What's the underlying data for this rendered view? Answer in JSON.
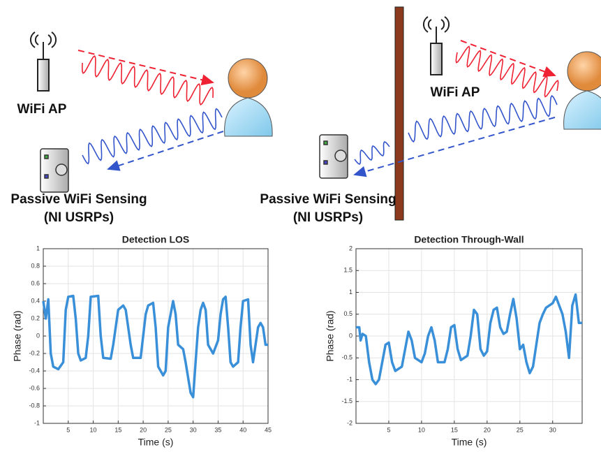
{
  "diagram": {
    "panels": [
      {
        "ap_label": "WiFi AP",
        "sensor_label": "Passive WiFi Sensing",
        "sensor_sublabel": "(NI USRPs)"
      },
      {
        "ap_label": "WiFi AP",
        "sensor_label": "Passive WiFi Sensing",
        "sensor_sublabel": "(NI USRPs)"
      }
    ]
  },
  "chart_data": [
    {
      "type": "line",
      "title": "Detection LOS",
      "x_label": "Time (s)",
      "y_label": "Phase (rad)",
      "xlim": [
        0,
        45
      ],
      "xticks": [
        5,
        10,
        15,
        20,
        25,
        30,
        35,
        40,
        45
      ],
      "ylim": [
        -1,
        1
      ],
      "yticks": [
        -1,
        -0.8,
        -0.6,
        -0.4,
        -0.2,
        0,
        0.2,
        0.4,
        0.6,
        0.8,
        1
      ],
      "grid": true,
      "x": [
        0,
        0.5,
        1,
        1.5,
        2,
        3,
        4,
        4.5,
        5,
        6,
        6.5,
        7,
        7.5,
        8.5,
        9,
        9.5,
        11,
        11.5,
        12,
        13.5,
        14,
        15,
        16,
        16.5,
        17.5,
        18,
        19.5,
        20,
        20.5,
        21,
        22,
        22.5,
        23,
        24,
        24.5,
        25,
        26,
        26.5,
        27,
        28,
        28.5,
        29.5,
        30,
        30.5,
        31,
        31.5,
        32,
        32.5,
        33,
        34,
        35,
        35.5,
        36,
        36.5,
        37,
        37.5,
        38,
        39,
        39.5,
        40,
        41,
        41.5,
        42,
        43,
        43.5,
        44,
        44.5,
        45
      ],
      "series": [
        {
          "color": "#3a8fd9",
          "values": [
            0.4,
            0.2,
            0.42,
            -0.2,
            -0.35,
            -0.38,
            -0.3,
            0.3,
            0.45,
            0.46,
            0.2,
            -0.2,
            -0.28,
            -0.25,
            0,
            0.45,
            0.46,
            0,
            -0.25,
            -0.26,
            -0.1,
            0.3,
            0.35,
            0.3,
            -0.1,
            -0.25,
            -0.25,
            0,
            0.25,
            0.35,
            0.38,
            0.1,
            -0.35,
            -0.45,
            -0.4,
            0.1,
            0.4,
            0.25,
            -0.1,
            -0.15,
            -0.3,
            -0.65,
            -0.7,
            -0.3,
            0.1,
            0.3,
            0.38,
            0.3,
            -0.1,
            -0.2,
            -0.05,
            0.25,
            0.42,
            0.45,
            0.1,
            -0.3,
            -0.35,
            -0.3,
            0.1,
            0.4,
            0.42,
            -0.1,
            -0.3,
            0.1,
            0.15,
            0.1,
            -0.1,
            -0.1
          ]
        }
      ]
    },
    {
      "type": "line",
      "title": "Detection Through-Wall",
      "x_label": "Time (s)",
      "y_label": "Phase (rad)",
      "xlim": [
        0,
        34.5
      ],
      "xticks": [
        5,
        10,
        15,
        20,
        25,
        30
      ],
      "ylim": [
        -2,
        2
      ],
      "yticks": [
        -2,
        -1.5,
        -1,
        -0.5,
        0,
        0.5,
        1,
        1.5,
        2
      ],
      "grid": true,
      "x": [
        0,
        0.5,
        0.7,
        1,
        1.5,
        2,
        2.5,
        3,
        3.5,
        4,
        4.5,
        5,
        5.5,
        6,
        7,
        7.5,
        8,
        8.5,
        9,
        10,
        10.5,
        11,
        11.5,
        12,
        12.5,
        13.5,
        14,
        14.5,
        15,
        15.5,
        16,
        17,
        17.5,
        18,
        18.5,
        19,
        19.5,
        20,
        20.5,
        21,
        21.5,
        22,
        22.5,
        23,
        23.5,
        24,
        24.5,
        25,
        25.5,
        26,
        26.5,
        27,
        27.5,
        28,
        28.5,
        29,
        30,
        30.5,
        31,
        31.5,
        32,
        32.5,
        33,
        33.5,
        34,
        34.5
      ],
      "series": [
        {
          "color": "#3a8fd9",
          "values": [
            0.2,
            0.2,
            -0.1,
            0.05,
            0,
            -0.6,
            -1,
            -1.1,
            -1,
            -0.6,
            -0.2,
            -0.15,
            -0.6,
            -0.8,
            -0.7,
            -0.3,
            0.1,
            -0.1,
            -0.5,
            -0.6,
            -0.4,
            0,
            0.2,
            -0.1,
            -0.6,
            -0.6,
            -0.3,
            0.2,
            0.25,
            -0.3,
            -0.55,
            -0.45,
            0,
            0.6,
            0.5,
            -0.3,
            -0.45,
            -0.35,
            0.3,
            0.6,
            0.65,
            0.2,
            0.05,
            0.1,
            0.5,
            0.85,
            0.4,
            -0.3,
            -0.2,
            -0.6,
            -0.85,
            -0.7,
            -0.2,
            0.3,
            0.5,
            0.65,
            0.75,
            0.9,
            0.7,
            0.5,
            0.1,
            -0.5,
            0.7,
            0.95,
            0.3,
            0.3
          ]
        }
      ]
    }
  ]
}
